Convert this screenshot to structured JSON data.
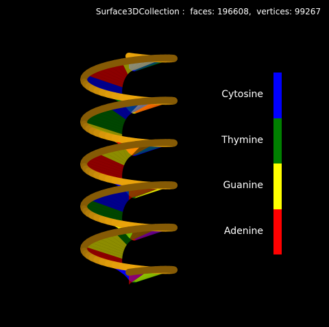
{
  "stats": {
    "label": "Surface3DCollection :",
    "faces_label": "faces:",
    "faces": 196608,
    "vertices_label": "vertices:",
    "vertices": 99267
  },
  "legend": [
    {
      "label": "Cytosine",
      "color": "#0000ff"
    },
    {
      "label": "Thymine",
      "color": "#008000"
    },
    {
      "label": "Guanine",
      "color": "#ffff00"
    },
    {
      "label": "Adenine",
      "color": "#ff0000"
    }
  ],
  "helix": {
    "turns": 5.5,
    "backbone_color": "#b8860b",
    "background": "#000000"
  }
}
